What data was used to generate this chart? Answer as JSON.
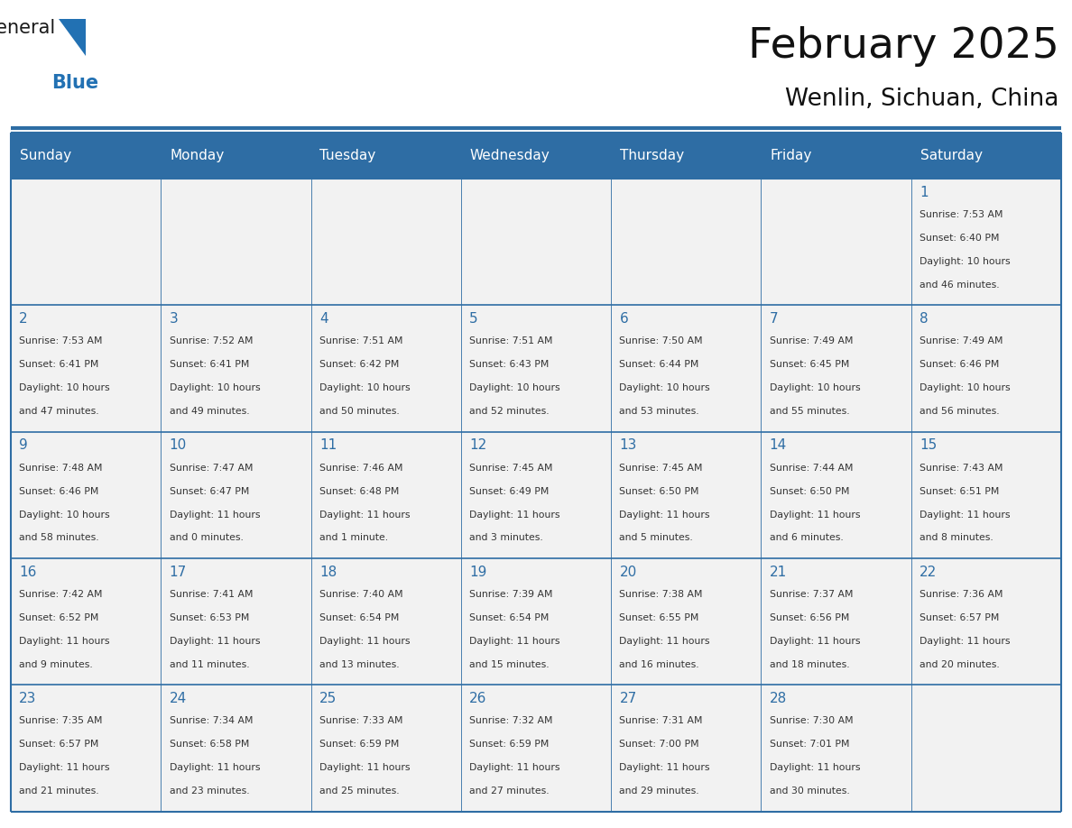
{
  "title": "February 2025",
  "subtitle": "Wenlin, Sichuan, China",
  "header_bg": "#2E6DA4",
  "header_text": "#FFFFFF",
  "cell_bg_light": "#F2F2F2",
  "border_color": "#2E6DA4",
  "text_color": "#333333",
  "day_num_color": "#2E6DA4",
  "day_headers": [
    "Sunday",
    "Monday",
    "Tuesday",
    "Wednesday",
    "Thursday",
    "Friday",
    "Saturday"
  ],
  "days": [
    {
      "day": 1,
      "col": 6,
      "row": 0,
      "sunrise": "7:53 AM",
      "sunset": "6:40 PM",
      "daylight_hours": 10,
      "daylight_minutes": 46
    },
    {
      "day": 2,
      "col": 0,
      "row": 1,
      "sunrise": "7:53 AM",
      "sunset": "6:41 PM",
      "daylight_hours": 10,
      "daylight_minutes": 47
    },
    {
      "day": 3,
      "col": 1,
      "row": 1,
      "sunrise": "7:52 AM",
      "sunset": "6:41 PM",
      "daylight_hours": 10,
      "daylight_minutes": 49
    },
    {
      "day": 4,
      "col": 2,
      "row": 1,
      "sunrise": "7:51 AM",
      "sunset": "6:42 PM",
      "daylight_hours": 10,
      "daylight_minutes": 50
    },
    {
      "day": 5,
      "col": 3,
      "row": 1,
      "sunrise": "7:51 AM",
      "sunset": "6:43 PM",
      "daylight_hours": 10,
      "daylight_minutes": 52
    },
    {
      "day": 6,
      "col": 4,
      "row": 1,
      "sunrise": "7:50 AM",
      "sunset": "6:44 PM",
      "daylight_hours": 10,
      "daylight_minutes": 53
    },
    {
      "day": 7,
      "col": 5,
      "row": 1,
      "sunrise": "7:49 AM",
      "sunset": "6:45 PM",
      "daylight_hours": 10,
      "daylight_minutes": 55
    },
    {
      "day": 8,
      "col": 6,
      "row": 1,
      "sunrise": "7:49 AM",
      "sunset": "6:46 PM",
      "daylight_hours": 10,
      "daylight_minutes": 56
    },
    {
      "day": 9,
      "col": 0,
      "row": 2,
      "sunrise": "7:48 AM",
      "sunset": "6:46 PM",
      "daylight_hours": 10,
      "daylight_minutes": 58
    },
    {
      "day": 10,
      "col": 1,
      "row": 2,
      "sunrise": "7:47 AM",
      "sunset": "6:47 PM",
      "daylight_hours": 11,
      "daylight_minutes": 0
    },
    {
      "day": 11,
      "col": 2,
      "row": 2,
      "sunrise": "7:46 AM",
      "sunset": "6:48 PM",
      "daylight_hours": 11,
      "daylight_minutes": 1
    },
    {
      "day": 12,
      "col": 3,
      "row": 2,
      "sunrise": "7:45 AM",
      "sunset": "6:49 PM",
      "daylight_hours": 11,
      "daylight_minutes": 3
    },
    {
      "day": 13,
      "col": 4,
      "row": 2,
      "sunrise": "7:45 AM",
      "sunset": "6:50 PM",
      "daylight_hours": 11,
      "daylight_minutes": 5
    },
    {
      "day": 14,
      "col": 5,
      "row": 2,
      "sunrise": "7:44 AM",
      "sunset": "6:50 PM",
      "daylight_hours": 11,
      "daylight_minutes": 6
    },
    {
      "day": 15,
      "col": 6,
      "row": 2,
      "sunrise": "7:43 AM",
      "sunset": "6:51 PM",
      "daylight_hours": 11,
      "daylight_minutes": 8
    },
    {
      "day": 16,
      "col": 0,
      "row": 3,
      "sunrise": "7:42 AM",
      "sunset": "6:52 PM",
      "daylight_hours": 11,
      "daylight_minutes": 9
    },
    {
      "day": 17,
      "col": 1,
      "row": 3,
      "sunrise": "7:41 AM",
      "sunset": "6:53 PM",
      "daylight_hours": 11,
      "daylight_minutes": 11
    },
    {
      "day": 18,
      "col": 2,
      "row": 3,
      "sunrise": "7:40 AM",
      "sunset": "6:54 PM",
      "daylight_hours": 11,
      "daylight_minutes": 13
    },
    {
      "day": 19,
      "col": 3,
      "row": 3,
      "sunrise": "7:39 AM",
      "sunset": "6:54 PM",
      "daylight_hours": 11,
      "daylight_minutes": 15
    },
    {
      "day": 20,
      "col": 4,
      "row": 3,
      "sunrise": "7:38 AM",
      "sunset": "6:55 PM",
      "daylight_hours": 11,
      "daylight_minutes": 16
    },
    {
      "day": 21,
      "col": 5,
      "row": 3,
      "sunrise": "7:37 AM",
      "sunset": "6:56 PM",
      "daylight_hours": 11,
      "daylight_minutes": 18
    },
    {
      "day": 22,
      "col": 6,
      "row": 3,
      "sunrise": "7:36 AM",
      "sunset": "6:57 PM",
      "daylight_hours": 11,
      "daylight_minutes": 20
    },
    {
      "day": 23,
      "col": 0,
      "row": 4,
      "sunrise": "7:35 AM",
      "sunset": "6:57 PM",
      "daylight_hours": 11,
      "daylight_minutes": 21
    },
    {
      "day": 24,
      "col": 1,
      "row": 4,
      "sunrise": "7:34 AM",
      "sunset": "6:58 PM",
      "daylight_hours": 11,
      "daylight_minutes": 23
    },
    {
      "day": 25,
      "col": 2,
      "row": 4,
      "sunrise": "7:33 AM",
      "sunset": "6:59 PM",
      "daylight_hours": 11,
      "daylight_minutes": 25
    },
    {
      "day": 26,
      "col": 3,
      "row": 4,
      "sunrise": "7:32 AM",
      "sunset": "6:59 PM",
      "daylight_hours": 11,
      "daylight_minutes": 27
    },
    {
      "day": 27,
      "col": 4,
      "row": 4,
      "sunrise": "7:31 AM",
      "sunset": "7:00 PM",
      "daylight_hours": 11,
      "daylight_minutes": 29
    },
    {
      "day": 28,
      "col": 5,
      "row": 4,
      "sunrise": "7:30 AM",
      "sunset": "7:01 PM",
      "daylight_hours": 11,
      "daylight_minutes": 30
    }
  ],
  "num_rows": 5,
  "num_cols": 7,
  "logo_color_general": "#1a1a1a",
  "logo_color_blue": "#2271B3",
  "logo_triangle_color": "#2271B3"
}
